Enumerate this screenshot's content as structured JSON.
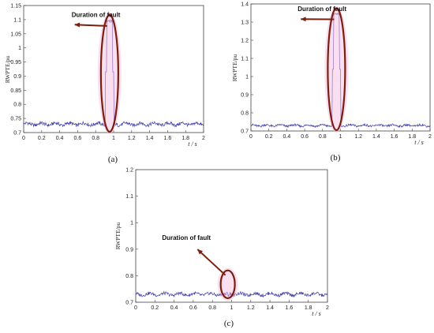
{
  "chart_data": [
    {
      "type": "line",
      "panel_label": "(a)",
      "xlabel": "t / s",
      "ylabel": "RWPTE/pu",
      "xlim": [
        0,
        2
      ],
      "ylim": [
        0.7,
        1.15
      ],
      "xticks": [
        "0",
        "0.2",
        "0.4",
        "0.6",
        "0.8",
        "1",
        "1.2",
        "1.4",
        "1.6",
        "1.8",
        "2"
      ],
      "yticks": [
        "0.7",
        "0.75",
        "0.8",
        "0.85",
        "0.9",
        "0.95",
        "1",
        "1.05",
        "1.1",
        "1.15"
      ],
      "annotation": "Duration of fault",
      "annotation_pos": [
        0.55,
        1.11
      ],
      "fault_window": [
        0.91,
        1.0
      ],
      "baseline": 0.73,
      "fault_peak": 1.1,
      "series_color": "#3a3aa8"
    },
    {
      "type": "line",
      "panel_label": "(b)",
      "xlabel": "t / s",
      "ylabel": "RWPTE/pu",
      "xlim": [
        0,
        2
      ],
      "ylim": [
        0.7,
        1.4
      ],
      "xticks": [
        "0",
        "0.2",
        "0.4",
        "0.6",
        "0.8",
        "1",
        "1.2",
        "1.4",
        "1.6",
        "1.8",
        "2"
      ],
      "yticks": [
        "0.7",
        "0.8",
        "0.9",
        "1",
        "1.1",
        "1.2",
        "1.3",
        "1.4"
      ],
      "annotation": "Duration of fault",
      "annotation_pos": [
        0.54,
        1.36
      ],
      "fault_window": [
        0.91,
        1.0
      ],
      "baseline": 0.73,
      "fault_peak": 1.35,
      "series_color": "#3a3aa8"
    },
    {
      "type": "line",
      "panel_label": "(c)",
      "xlabel": "t / s",
      "ylabel": "RWPTE/pu",
      "xlim": [
        0,
        2
      ],
      "ylim": [
        0.7,
        1.2
      ],
      "xticks": [
        "0",
        "0.2",
        "0.4",
        "0.6",
        "0.8",
        "1",
        "1.2",
        "1.4",
        "1.6",
        "1.8",
        "2"
      ],
      "yticks": [
        "0.7",
        "0.8",
        "0.9",
        "1",
        "1.1",
        "1.2"
      ],
      "annotation": "Duration of fault",
      "annotation_pos": [
        0.62,
        0.935
      ],
      "fault_window": [
        0.92,
        1.0
      ],
      "baseline": 0.73,
      "fault_peak": 0.74,
      "series_color": "#3a3aa8"
    }
  ],
  "style": {
    "ellipse_color": "#7a1f0f",
    "arrow_color": "#7a1f0f",
    "highlight_color": "#f5b8e0"
  }
}
